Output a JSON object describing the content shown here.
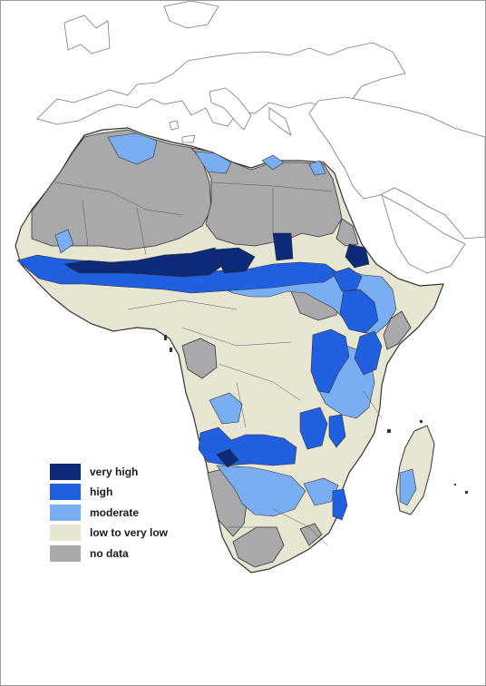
{
  "map": {
    "region": "Africa",
    "legend": [
      {
        "label": "very high",
        "color": "#0d2a78"
      },
      {
        "label": "high",
        "color": "#1f5fe0"
      },
      {
        "label": "moderate",
        "color": "#79aef2"
      },
      {
        "label": "low to very low",
        "color": "#e6e6d2"
      },
      {
        "label": "no data",
        "color": "#a9a9ab"
      }
    ],
    "colors": {
      "land_outline": "#333333",
      "surrounding_land": "#ffffff",
      "background": "#ffffff",
      "frame": "#9a9a9a"
    }
  }
}
